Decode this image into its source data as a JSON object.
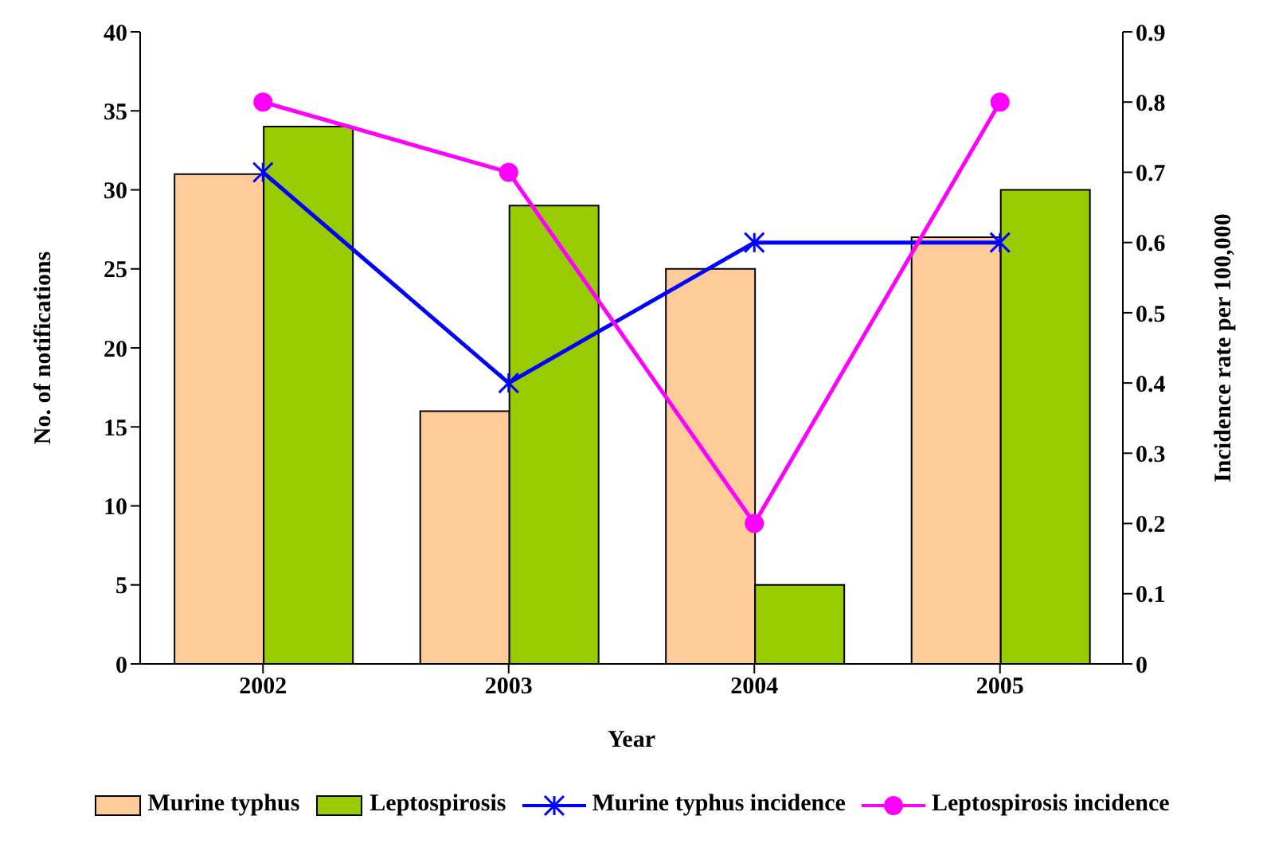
{
  "chart_data": {
    "type": "bar",
    "xlabel": "Year",
    "ylabel": "No. of notifications",
    "y2label": "Incidence rate per 100,000",
    "categories": [
      "2002",
      "2003",
      "2004",
      "2005"
    ],
    "series": [
      {
        "name": "Murine typhus",
        "color": "#ffcc99",
        "values": [
          31,
          16,
          25,
          27
        ]
      },
      {
        "name": "Leptospirosis",
        "color": "#99cc00",
        "values": [
          34,
          29,
          5,
          30
        ]
      },
      {
        "name": "Murine typhus incidence",
        "type": "line",
        "axis": "y2",
        "color": "#0000ff",
        "marker": "cross",
        "values": [
          0.7,
          0.4,
          0.6,
          0.6
        ]
      },
      {
        "name": "Leptospirosis incidence",
        "type": "line",
        "axis": "y2",
        "color": "#ff00ff",
        "marker": "circle",
        "values": [
          0.8,
          0.7,
          0.2,
          0.8
        ]
      }
    ],
    "ylim": [
      0,
      40
    ],
    "yticks": [
      0,
      5,
      10,
      15,
      20,
      25,
      30,
      35,
      40
    ],
    "y2lim": [
      0,
      0.9
    ],
    "y2ticks": [
      0,
      0.1,
      0.2,
      0.3,
      0.4,
      0.5,
      0.6,
      0.7,
      0.8,
      0.9
    ],
    "grid": false,
    "legend": "bottom"
  }
}
